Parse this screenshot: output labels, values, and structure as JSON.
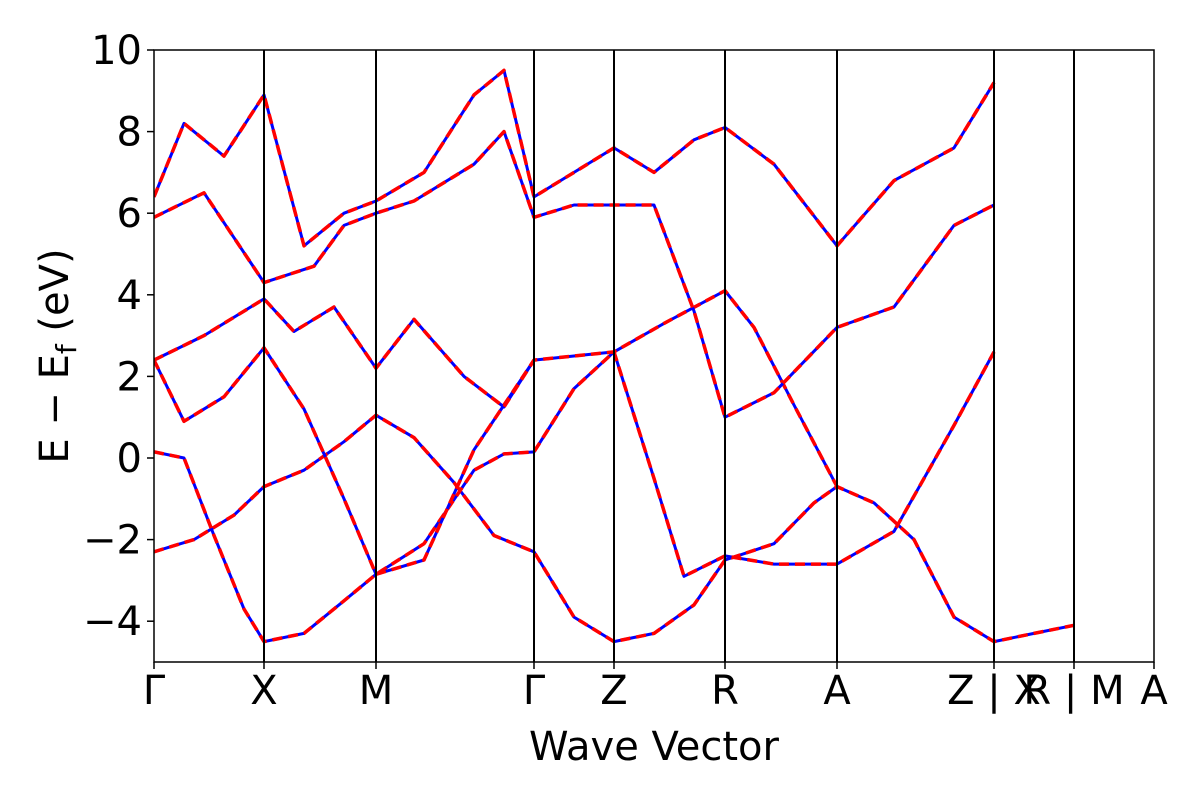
{
  "chart_data": {
    "type": "line",
    "title": "",
    "xlabel": "Wave Vector",
    "ylabel": "E − E_f (eV)",
    "ylabel_parts": {
      "main": "E − E",
      "sub": "f",
      "unit": " (eV)"
    },
    "ylim": [
      -5,
      10
    ],
    "yticks": [
      -4,
      -2,
      0,
      2,
      4,
      6,
      8,
      10
    ],
    "ytick_labels": [
      "−4",
      "−2",
      "0",
      "2",
      "4",
      "6",
      "8",
      "10"
    ],
    "xlim": [
      0,
      10
    ],
    "kpoints": [
      {
        "x": 0.0,
        "label": "Γ"
      },
      {
        "x": 1.1,
        "label": "X"
      },
      {
        "x": 2.22,
        "label": "M"
      },
      {
        "x": 3.8,
        "label": "Γ"
      },
      {
        "x": 4.6,
        "label": "Z"
      },
      {
        "x": 5.71,
        "label": "R"
      },
      {
        "x": 6.83,
        "label": "A"
      },
      {
        "x": 8.4,
        "label": "Z | X"
      },
      {
        "x": 9.2,
        "label": "R | M"
      },
      {
        "x": 10.0,
        "label": "A"
      }
    ],
    "grid": false,
    "legend": "none",
    "colors": {
      "dft": "#0000ff",
      "fit": "#ff0000",
      "axes": "#000000"
    },
    "series": [
      {
        "color": "#0000ff",
        "style": "solid",
        "role": "reference",
        "bands": [
          [
            [
              0,
              -2.3
            ],
            [
              0.4,
              -2.0
            ],
            [
              0.8,
              -1.4
            ],
            [
              1.1,
              -0.7
            ],
            [
              1.5,
              -0.3
            ],
            [
              1.9,
              0.4
            ],
            [
              2.22,
              1.05
            ],
            [
              2.6,
              0.5
            ],
            [
              3.0,
              -0.6
            ],
            [
              3.4,
              -1.9
            ],
            [
              3.8,
              -2.3
            ],
            [
              4.2,
              -3.9
            ],
            [
              4.6,
              -4.5
            ],
            [
              5.0,
              -4.3
            ],
            [
              5.4,
              -3.6
            ],
            [
              5.71,
              -2.5
            ],
            [
              6.2,
              -2.1
            ],
            [
              6.6,
              -1.1
            ],
            [
              6.83,
              -0.7
            ],
            [
              7.2,
              -1.1
            ],
            [
              7.6,
              -2.0
            ],
            [
              8.0,
              -3.9
            ],
            [
              8.4,
              -4.5
            ],
            [
              8.8,
              -4.3
            ],
            [
              9.2,
              -4.1
            ]
          ],
          [
            [
              0,
              0.15
            ],
            [
              0.3,
              0.0
            ],
            [
              0.6,
              -1.9
            ],
            [
              0.9,
              -3.7
            ],
            [
              1.1,
              -4.5
            ],
            [
              1.5,
              -4.3
            ],
            [
              1.9,
              -3.5
            ],
            [
              2.22,
              -2.85
            ],
            [
              2.7,
              -2.1
            ],
            [
              3.2,
              -0.3
            ],
            [
              3.5,
              0.1
            ],
            [
              3.8,
              0.15
            ],
            [
              4.2,
              1.7
            ],
            [
              4.6,
              2.6
            ],
            [
              5.0,
              -0.5
            ],
            [
              5.3,
              -2.9
            ],
            [
              5.71,
              -2.4
            ],
            [
              6.2,
              -2.6
            ],
            [
              6.83,
              -2.6
            ],
            [
              7.4,
              -1.8
            ],
            [
              8.0,
              0.8
            ],
            [
              8.4,
              2.6
            ]
          ],
          [
            [
              0,
              2.4
            ],
            [
              0.3,
              0.9
            ],
            [
              0.7,
              1.5
            ],
            [
              1.1,
              2.7
            ],
            [
              1.5,
              1.2
            ],
            [
              1.9,
              -1.0
            ],
            [
              2.22,
              -2.85
            ],
            [
              2.7,
              -2.5
            ],
            [
              3.2,
              0.2
            ],
            [
              3.5,
              1.3
            ],
            [
              3.8,
              2.4
            ],
            [
              4.2,
              2.5
            ],
            [
              4.6,
              2.6
            ],
            [
              5.1,
              3.3
            ],
            [
              5.71,
              4.1
            ],
            [
              6.0,
              3.2
            ],
            [
              6.4,
              1.3
            ],
            [
              6.83,
              -0.7
            ]
          ],
          [
            [
              0,
              2.4
            ],
            [
              0.5,
              3.0
            ],
            [
              1.1,
              3.9
            ],
            [
              1.4,
              3.1
            ],
            [
              1.8,
              3.7
            ],
            [
              2.22,
              2.2
            ],
            [
              2.6,
              3.4
            ],
            [
              3.1,
              2.0
            ],
            [
              3.5,
              1.25
            ],
            [
              3.8,
              2.4
            ]
          ],
          [
            [
              0,
              5.9
            ],
            [
              0.5,
              6.5
            ],
            [
              0.8,
              5.4
            ],
            [
              1.1,
              4.3
            ],
            [
              1.6,
              4.7
            ],
            [
              1.9,
              5.7
            ],
            [
              2.22,
              6.0
            ],
            [
              2.6,
              6.3
            ],
            [
              3.2,
              7.2
            ],
            [
              3.5,
              8.0
            ],
            [
              3.8,
              5.9
            ],
            [
              4.2,
              6.2
            ],
            [
              4.6,
              6.2
            ],
            [
              5.0,
              6.2
            ],
            [
              5.4,
              3.6
            ],
            [
              5.71,
              1.0
            ],
            [
              6.2,
              1.6
            ],
            [
              6.83,
              3.2
            ],
            [
              7.4,
              3.7
            ],
            [
              8.0,
              5.7
            ],
            [
              8.4,
              6.2
            ]
          ],
          [
            [
              0,
              6.4
            ],
            [
              0.3,
              8.2
            ],
            [
              0.7,
              7.4
            ],
            [
              1.1,
              8.9
            ],
            [
              1.5,
              5.2
            ],
            [
              1.9,
              6.0
            ],
            [
              2.22,
              6.3
            ],
            [
              2.7,
              7.0
            ],
            [
              3.2,
              8.9
            ],
            [
              3.5,
              9.5
            ],
            [
              3.8,
              6.4
            ],
            [
              4.6,
              7.6
            ],
            [
              5.0,
              7.0
            ],
            [
              5.4,
              7.8
            ],
            [
              5.71,
              8.1
            ],
            [
              6.2,
              7.2
            ],
            [
              6.83,
              5.2
            ],
            [
              7.4,
              6.8
            ],
            [
              8.0,
              7.6
            ],
            [
              8.4,
              9.2
            ]
          ]
        ]
      },
      {
        "color": "#ff0000",
        "style": "dashed",
        "role": "fit",
        "bands": []
      }
    ]
  }
}
